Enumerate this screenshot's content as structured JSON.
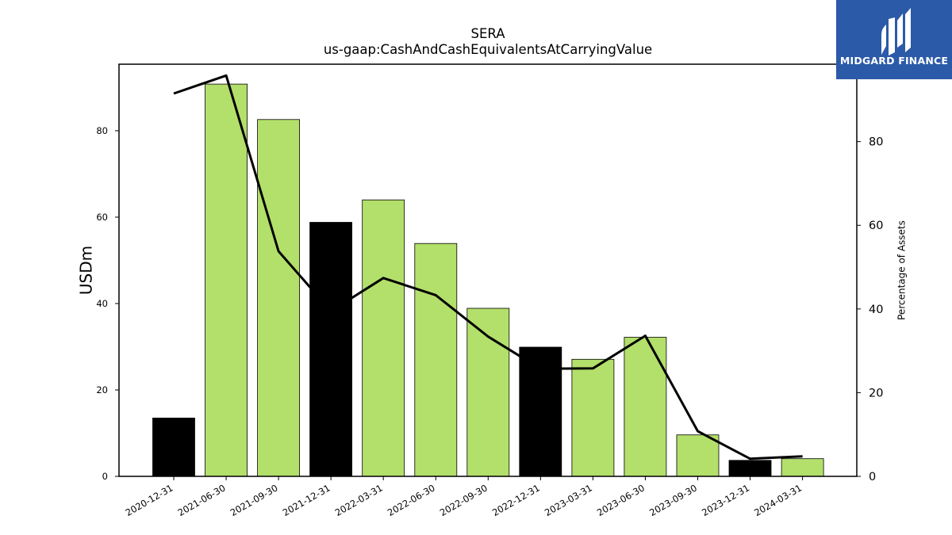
{
  "chart_data": {
    "type": "bar",
    "title": "SERA",
    "subtitle": "us-gaap:CashAndCashEquivalentsAtCarryingValue",
    "ylabel": "USDm",
    "y2label": "Percentage of Assets",
    "categories": [
      "2020-12-31",
      "2021-06-30",
      "2021-09-30",
      "2021-12-31",
      "2022-03-31",
      "2022-06-30",
      "2022-09-30",
      "2022-12-31",
      "2023-03-31",
      "2023-06-30",
      "2023-09-30",
      "2023-12-31",
      "2024-03-31"
    ],
    "series": [
      {
        "type": "bar",
        "axis": "left",
        "values": [
          13.5,
          90.8,
          82.6,
          58.8,
          64.0,
          53.9,
          38.9,
          29.9,
          27.1,
          32.2,
          9.6,
          3.7,
          4.1
        ],
        "colors": [
          "#000000",
          "#b3df6b",
          "#b3df6b",
          "#000000",
          "#b3df6b",
          "#b3df6b",
          "#b3df6b",
          "#000000",
          "#b3df6b",
          "#b3df6b",
          "#b3df6b",
          "#000000",
          "#b3df6b"
        ]
      },
      {
        "type": "line",
        "axis": "right",
        "values": [
          91.5,
          95.8,
          53.8,
          39.5,
          47.4,
          43.3,
          33.4,
          25.7,
          25.8,
          33.6,
          10.8,
          4.2,
          4.8
        ],
        "color": "#000000"
      }
    ],
    "ylim": [
      0,
      95.4
    ],
    "y2lim": [
      0,
      98.5
    ],
    "yticks": [
      0,
      20,
      40,
      60,
      80
    ],
    "y2ticks": [
      0,
      20,
      40,
      60,
      80
    ],
    "grid": false,
    "legend": "none"
  },
  "logo": {
    "text": "MIDGARD FINANCE",
    "background": "#2b5aa8"
  }
}
